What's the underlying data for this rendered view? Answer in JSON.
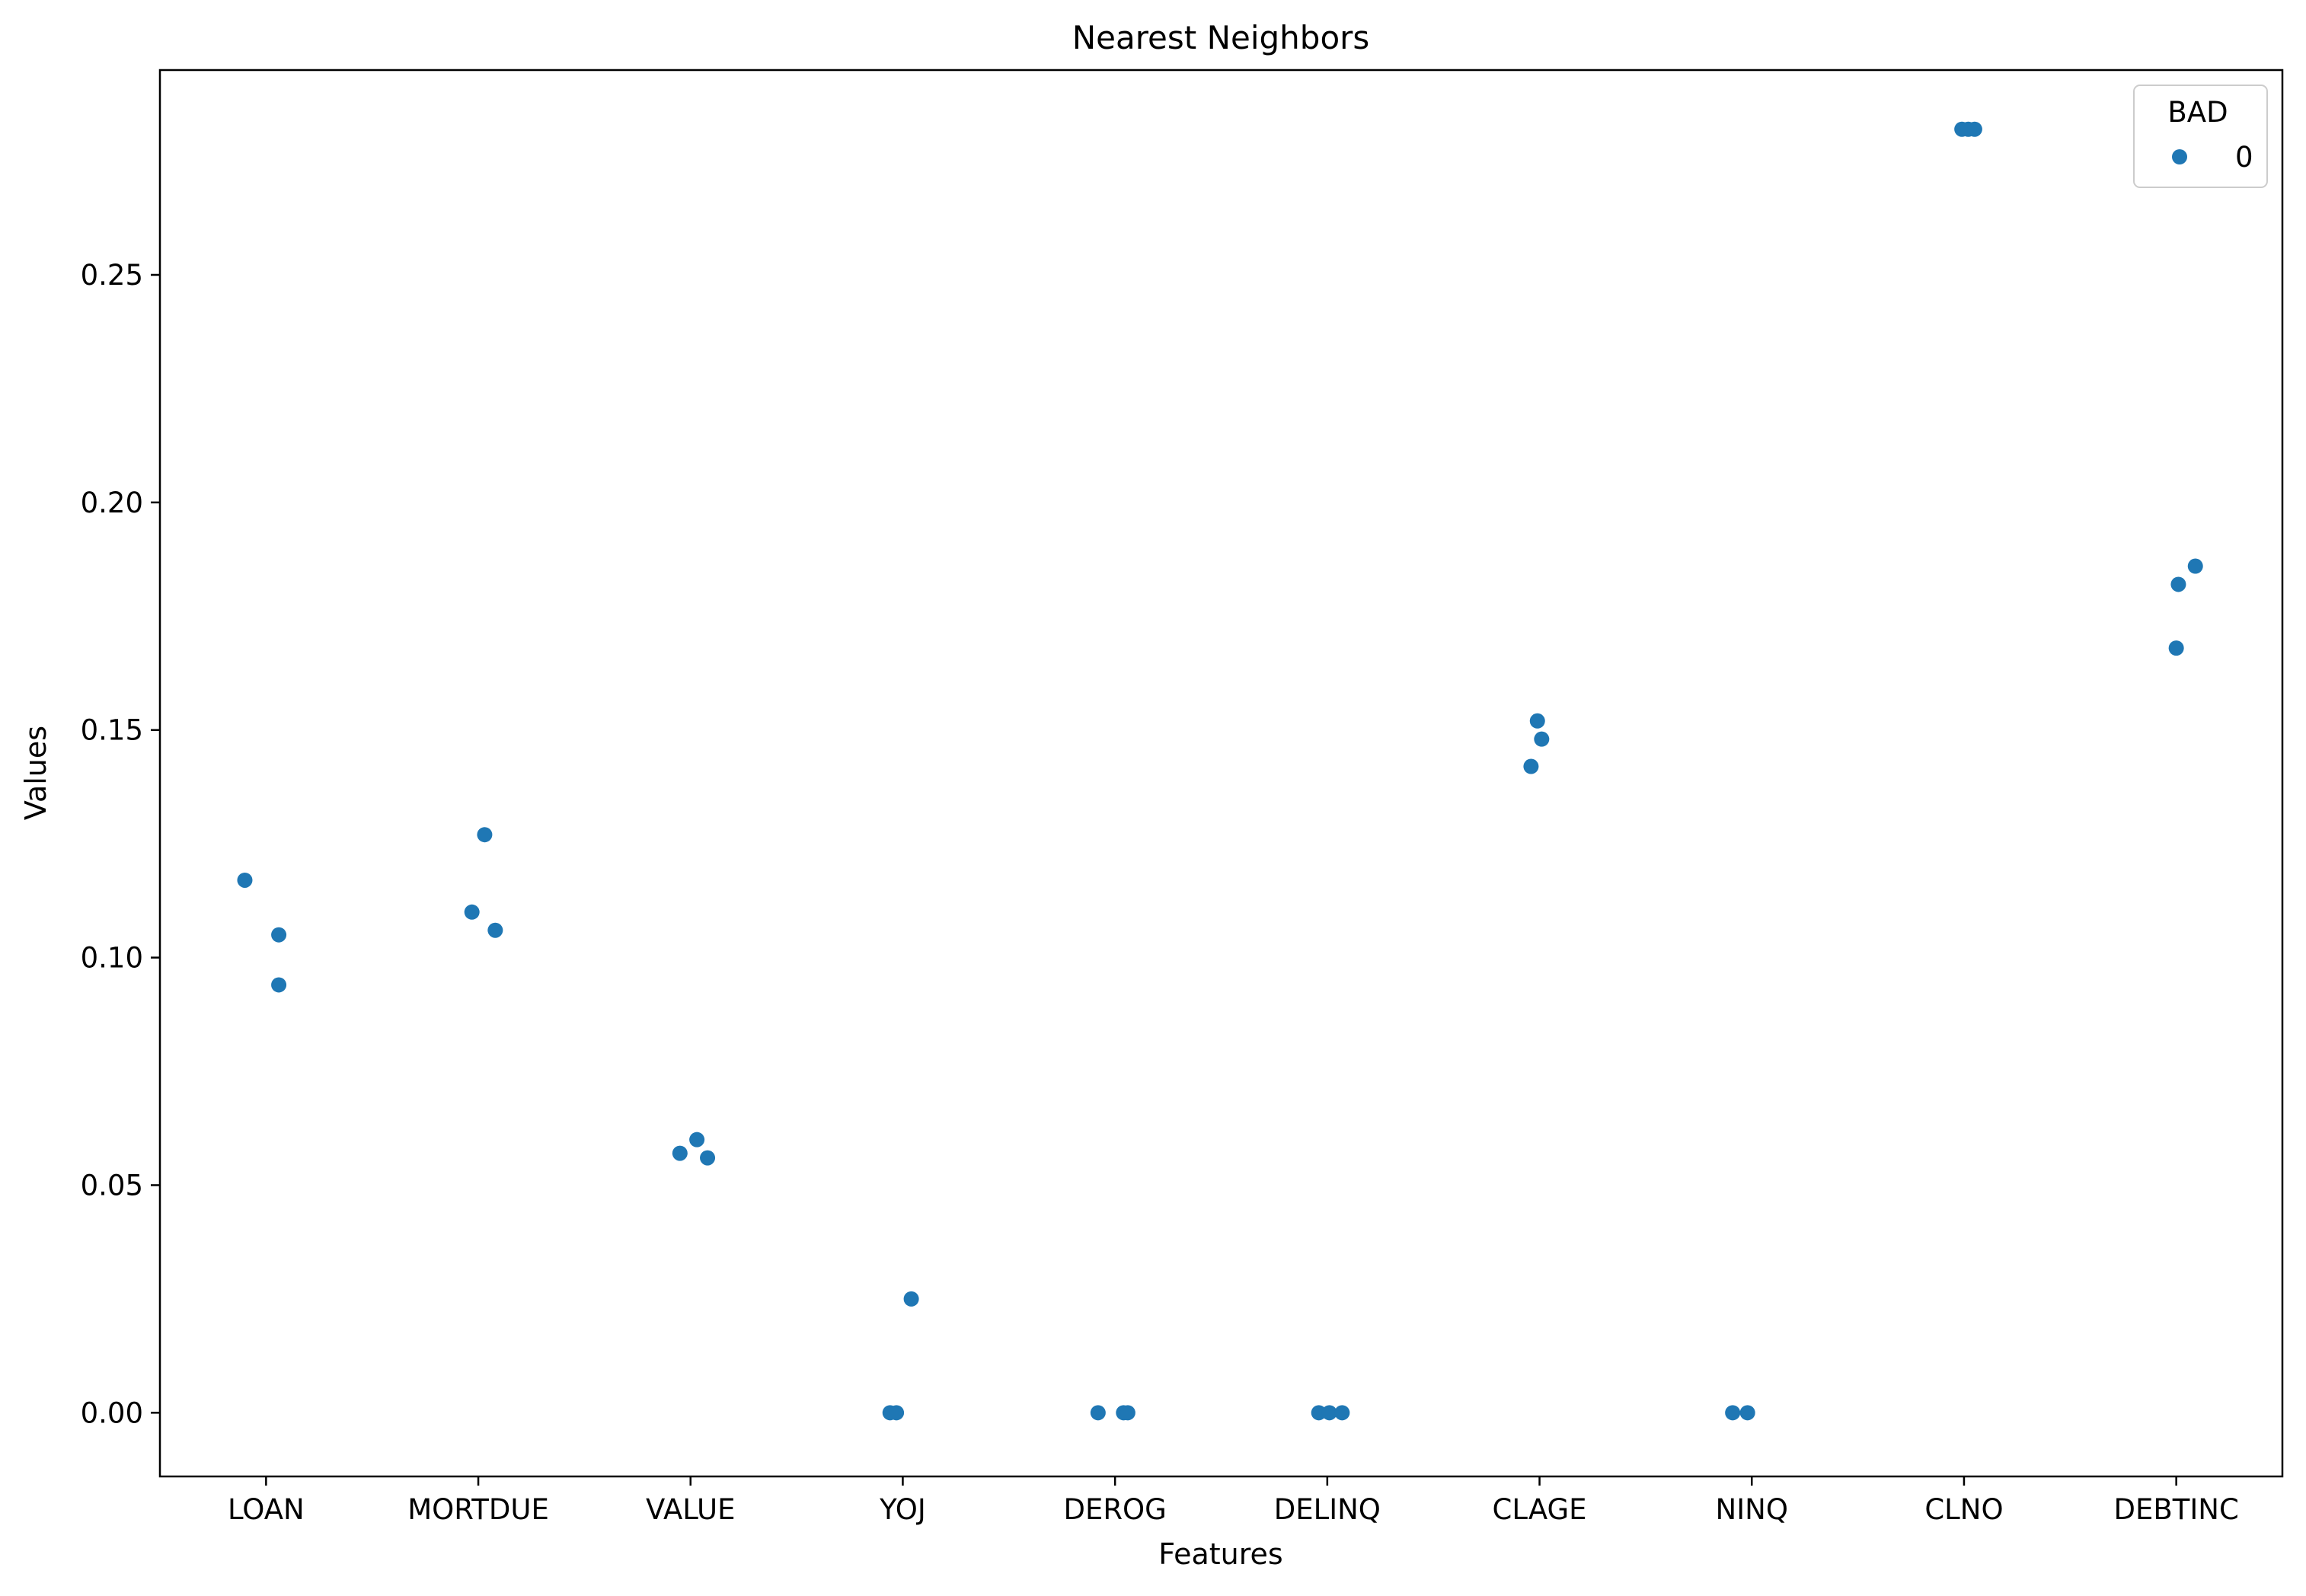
{
  "chart_data": {
    "type": "scatter",
    "title": "Nearest Neighbors",
    "xlabel": "Features",
    "ylabel": "Values",
    "categories": [
      "LOAN",
      "MORTDUE",
      "VALUE",
      "YOJ",
      "DEROG",
      "DELINQ",
      "CLAGE",
      "NINQ",
      "CLNO",
      "DEBTINC"
    ],
    "ylim": [
      -0.014,
      0.295
    ],
    "yticks": [
      0.0,
      0.05,
      0.1,
      0.15,
      0.2,
      0.25
    ],
    "ytick_labels": [
      "0.00",
      "0.05",
      "0.10",
      "0.15",
      "0.20",
      "0.25"
    ],
    "grid": false,
    "legend": {
      "title": "BAD",
      "placement": "top-right",
      "entries": [
        {
          "label": "0",
          "color": "#1f77b4"
        }
      ]
    },
    "series": [
      {
        "name": "0",
        "color": "#1f77b4",
        "points": [
          {
            "category": "LOAN",
            "jitter": -0.1,
            "y": 0.117
          },
          {
            "category": "LOAN",
            "jitter": 0.06,
            "y": 0.105
          },
          {
            "category": "LOAN",
            "jitter": 0.06,
            "y": 0.094
          },
          {
            "category": "MORTDUE",
            "jitter": -0.03,
            "y": 0.11
          },
          {
            "category": "MORTDUE",
            "jitter": 0.03,
            "y": 0.127
          },
          {
            "category": "MORTDUE",
            "jitter": 0.08,
            "y": 0.106
          },
          {
            "category": "VALUE",
            "jitter": -0.05,
            "y": 0.057
          },
          {
            "category": "VALUE",
            "jitter": 0.03,
            "y": 0.06
          },
          {
            "category": "VALUE",
            "jitter": 0.08,
            "y": 0.056
          },
          {
            "category": "YOJ",
            "jitter": -0.06,
            "y": 0.0
          },
          {
            "category": "YOJ",
            "jitter": -0.03,
            "y": 0.0
          },
          {
            "category": "YOJ",
            "jitter": 0.04,
            "y": 0.025
          },
          {
            "category": "DEROG",
            "jitter": -0.08,
            "y": 0.0
          },
          {
            "category": "DEROG",
            "jitter": 0.04,
            "y": 0.0
          },
          {
            "category": "DEROG",
            "jitter": 0.06,
            "y": 0.0
          },
          {
            "category": "DELINQ",
            "jitter": -0.04,
            "y": 0.0
          },
          {
            "category": "DELINQ",
            "jitter": 0.01,
            "y": 0.0
          },
          {
            "category": "DELINQ",
            "jitter": 0.07,
            "y": 0.0
          },
          {
            "category": "CLAGE",
            "jitter": -0.04,
            "y": 0.142
          },
          {
            "category": "CLAGE",
            "jitter": -0.01,
            "y": 0.152
          },
          {
            "category": "CLAGE",
            "jitter": 0.01,
            "y": 0.148
          },
          {
            "category": "NINQ",
            "jitter": -0.09,
            "y": 0.0
          },
          {
            "category": "NINQ",
            "jitter": -0.02,
            "y": 0.0
          },
          {
            "category": "CLNO",
            "jitter": -0.01,
            "y": 0.282
          },
          {
            "category": "CLNO",
            "jitter": 0.02,
            "y": 0.282
          },
          {
            "category": "CLNO",
            "jitter": 0.05,
            "y": 0.282
          },
          {
            "category": "DEBTINC",
            "jitter": 0.0,
            "y": 0.168
          },
          {
            "category": "DEBTINC",
            "jitter": 0.01,
            "y": 0.182
          },
          {
            "category": "DEBTINC",
            "jitter": 0.09,
            "y": 0.186
          }
        ]
      }
    ]
  }
}
